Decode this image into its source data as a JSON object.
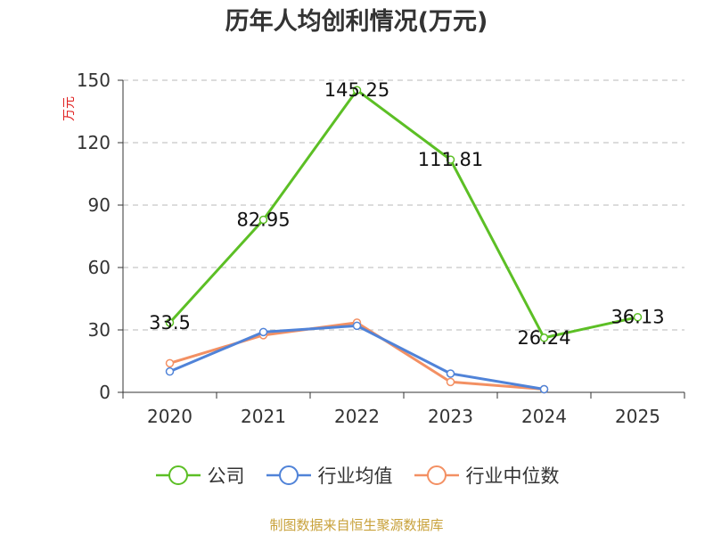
{
  "chart_data": {
    "type": "line",
    "title": "历年人均创利情况(万元)",
    "ylabel": "万元",
    "xlabel": "",
    "categories": [
      "2020",
      "2021",
      "2022",
      "2023",
      "2024",
      "2025"
    ],
    "ylim": [
      0,
      150
    ],
    "yticks": [
      0,
      30,
      60,
      90,
      120,
      150
    ],
    "grid": true,
    "legend_position": "bottom",
    "series": [
      {
        "name": "公司",
        "color": "#5cbf25",
        "values": [
          33.5,
          82.95,
          145.25,
          111.81,
          26.24,
          36.13
        ],
        "show_labels": true
      },
      {
        "name": "行业均值",
        "color": "#5083d8",
        "values": [
          10,
          29,
          32,
          9,
          1.5,
          null
        ],
        "show_labels": false
      },
      {
        "name": "行业中位数",
        "color": "#f39063",
        "values": [
          14,
          27.5,
          33.5,
          5,
          1.5,
          null
        ],
        "show_labels": false
      }
    ],
    "data_labels": [
      "33.5",
      "82.95",
      "145.25",
      "111.81",
      "26.24",
      "36.13"
    ]
  },
  "source": {
    "text": "制图数据来自恒生聚源数据库",
    "color": "#c8a13a"
  },
  "axis_color": "#333333",
  "grid_color": "#c8c8c8",
  "ylabel_color": "#e02020"
}
